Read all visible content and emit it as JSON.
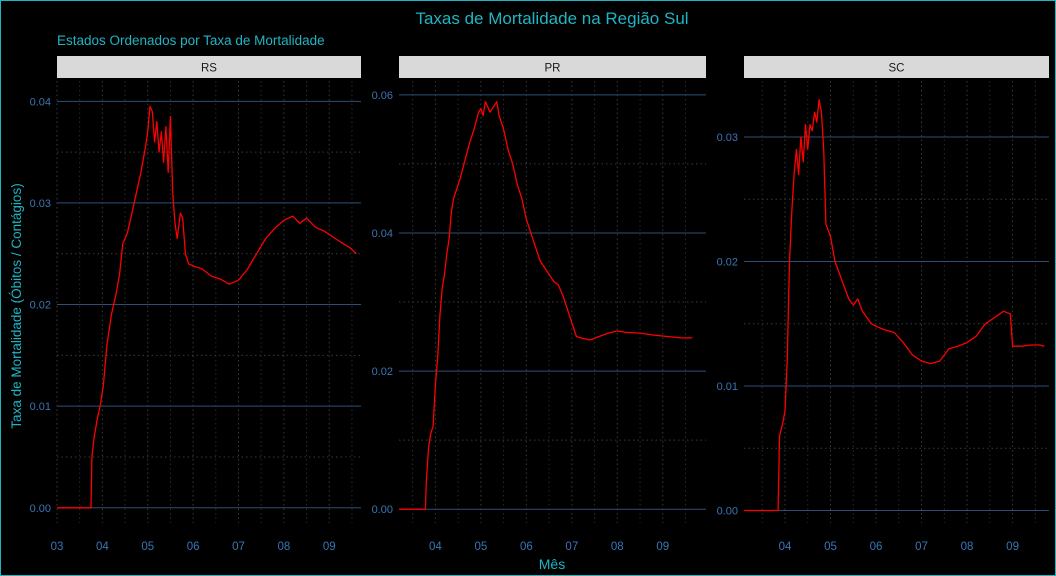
{
  "title": "Taxas de Mortalidade na Região Sul",
  "subtitle": "Estados Ordenados por Taxa de Mortalidade",
  "colors": {
    "title": "#1fb5c4",
    "axis_text": "#3b74b5",
    "line": "#ff0000",
    "grid_major": "#2e4f73",
    "grid_minor": "#2a2a2a",
    "strip_bg": "#d9d9d9",
    "strip_text": "#1a1a1a"
  },
  "chart_data": {
    "type": "line",
    "xlabel": "Mês",
    "ylabel": "Taxa de Mortalidade (Óbitos / Contágios)",
    "grid": true,
    "panels": [
      {
        "name": "RS",
        "x_ticks": [
          "03",
          "04",
          "05",
          "06",
          "07",
          "08",
          "09"
        ],
        "x_range": [
          3,
          9.7
        ],
        "y_ticks": [
          "0.00",
          "0.01",
          "0.02",
          "0.03",
          "0.04"
        ],
        "y_range": [
          -0.0015,
          0.042
        ],
        "points": [
          [
            3.0,
            0.0
          ],
          [
            3.75,
            0.0
          ],
          [
            3.77,
            0.005
          ],
          [
            3.82,
            0.007
          ],
          [
            3.9,
            0.009
          ],
          [
            3.95,
            0.01
          ],
          [
            4.02,
            0.012
          ],
          [
            4.1,
            0.016
          ],
          [
            4.2,
            0.019
          ],
          [
            4.3,
            0.021
          ],
          [
            4.38,
            0.023
          ],
          [
            4.45,
            0.026
          ],
          [
            4.55,
            0.027
          ],
          [
            4.65,
            0.029
          ],
          [
            4.75,
            0.031
          ],
          [
            4.85,
            0.033
          ],
          [
            4.95,
            0.0355
          ],
          [
            5.0,
            0.037
          ],
          [
            5.05,
            0.0395
          ],
          [
            5.1,
            0.039
          ],
          [
            5.15,
            0.036
          ],
          [
            5.2,
            0.038
          ],
          [
            5.25,
            0.035
          ],
          [
            5.3,
            0.037
          ],
          [
            5.35,
            0.034
          ],
          [
            5.4,
            0.0375
          ],
          [
            5.45,
            0.033
          ],
          [
            5.5,
            0.0385
          ],
          [
            5.55,
            0.031
          ],
          [
            5.6,
            0.028
          ],
          [
            5.65,
            0.0265
          ],
          [
            5.72,
            0.029
          ],
          [
            5.77,
            0.0285
          ],
          [
            5.83,
            0.025
          ],
          [
            5.9,
            0.024
          ],
          [
            6.0,
            0.0238
          ],
          [
            6.2,
            0.0235
          ],
          [
            6.4,
            0.0228
          ],
          [
            6.6,
            0.0225
          ],
          [
            6.8,
            0.022
          ],
          [
            7.0,
            0.0224
          ],
          [
            7.2,
            0.0235
          ],
          [
            7.4,
            0.025
          ],
          [
            7.6,
            0.0265
          ],
          [
            7.8,
            0.0275
          ],
          [
            8.0,
            0.0283
          ],
          [
            8.2,
            0.0287
          ],
          [
            8.35,
            0.028
          ],
          [
            8.5,
            0.0285
          ],
          [
            8.7,
            0.0276
          ],
          [
            8.9,
            0.0272
          ],
          [
            9.1,
            0.0266
          ],
          [
            9.3,
            0.026
          ],
          [
            9.45,
            0.0256
          ],
          [
            9.6,
            0.025
          ]
        ]
      },
      {
        "name": "PR",
        "x_ticks": [
          "04",
          "05",
          "06",
          "07",
          "08",
          "09"
        ],
        "x_range": [
          3.2,
          9.95
        ],
        "y_ticks": [
          "0.00",
          "0.02",
          "0.04",
          "0.06"
        ],
        "y_range": [
          -0.002,
          0.062
        ],
        "points": [
          [
            3.2,
            0.0
          ],
          [
            3.78,
            0.0
          ],
          [
            3.8,
            0.004
          ],
          [
            3.85,
            0.009
          ],
          [
            3.9,
            0.011
          ],
          [
            3.95,
            0.012
          ],
          [
            4.0,
            0.018
          ],
          [
            4.05,
            0.022
          ],
          [
            4.1,
            0.028
          ],
          [
            4.15,
            0.032
          ],
          [
            4.2,
            0.034
          ],
          [
            4.25,
            0.037
          ],
          [
            4.3,
            0.039
          ],
          [
            4.35,
            0.043
          ],
          [
            4.4,
            0.045
          ],
          [
            4.45,
            0.046
          ],
          [
            4.55,
            0.048
          ],
          [
            4.65,
            0.0505
          ],
          [
            4.75,
            0.053
          ],
          [
            4.85,
            0.055
          ],
          [
            4.95,
            0.0575
          ],
          [
            5.0,
            0.058
          ],
          [
            5.05,
            0.057
          ],
          [
            5.1,
            0.059
          ],
          [
            5.2,
            0.0575
          ],
          [
            5.3,
            0.0585
          ],
          [
            5.35,
            0.059
          ],
          [
            5.4,
            0.057
          ],
          [
            5.5,
            0.055
          ],
          [
            5.6,
            0.052
          ],
          [
            5.7,
            0.05
          ],
          [
            5.8,
            0.047
          ],
          [
            5.9,
            0.045
          ],
          [
            6.0,
            0.042
          ],
          [
            6.1,
            0.04
          ],
          [
            6.2,
            0.038
          ],
          [
            6.3,
            0.036
          ],
          [
            6.4,
            0.035
          ],
          [
            6.5,
            0.034
          ],
          [
            6.6,
            0.033
          ],
          [
            6.7,
            0.0325
          ],
          [
            6.8,
            0.031
          ],
          [
            6.9,
            0.029
          ],
          [
            7.0,
            0.027
          ],
          [
            7.1,
            0.025
          ],
          [
            7.2,
            0.0248
          ],
          [
            7.4,
            0.0245
          ],
          [
            7.6,
            0.025
          ],
          [
            7.8,
            0.0255
          ],
          [
            8.0,
            0.0258
          ],
          [
            8.2,
            0.0256
          ],
          [
            8.5,
            0.0255
          ],
          [
            8.8,
            0.0252
          ],
          [
            9.1,
            0.025
          ],
          [
            9.4,
            0.0248
          ],
          [
            9.65,
            0.0248
          ]
        ]
      },
      {
        "name": "SC",
        "x_ticks": [
          "04",
          "05",
          "06",
          "07",
          "08",
          "09"
        ],
        "x_range": [
          3.1,
          9.8
        ],
        "y_ticks": [
          "0.00",
          "0.01",
          "0.02",
          "0.03"
        ],
        "y_range": [
          -0.001,
          0.0345
        ],
        "points": [
          [
            3.1,
            0.0
          ],
          [
            3.85,
            0.0
          ],
          [
            3.88,
            0.006
          ],
          [
            3.95,
            0.007
          ],
          [
            4.0,
            0.008
          ],
          [
            4.05,
            0.012
          ],
          [
            4.1,
            0.02
          ],
          [
            4.15,
            0.024
          ],
          [
            4.2,
            0.027
          ],
          [
            4.25,
            0.029
          ],
          [
            4.3,
            0.027
          ],
          [
            4.35,
            0.03
          ],
          [
            4.4,
            0.028
          ],
          [
            4.45,
            0.031
          ],
          [
            4.5,
            0.029
          ],
          [
            4.55,
            0.031
          ],
          [
            4.6,
            0.0305
          ],
          [
            4.65,
            0.032
          ],
          [
            4.7,
            0.0312
          ],
          [
            4.75,
            0.033
          ],
          [
            4.8,
            0.032
          ],
          [
            4.85,
            0.029
          ],
          [
            4.9,
            0.023
          ],
          [
            5.0,
            0.022
          ],
          [
            5.1,
            0.02
          ],
          [
            5.2,
            0.019
          ],
          [
            5.3,
            0.018
          ],
          [
            5.4,
            0.017
          ],
          [
            5.5,
            0.0165
          ],
          [
            5.6,
            0.017
          ],
          [
            5.7,
            0.016
          ],
          [
            5.8,
            0.0155
          ],
          [
            5.9,
            0.015
          ],
          [
            6.0,
            0.0148
          ],
          [
            6.2,
            0.0145
          ],
          [
            6.4,
            0.0143
          ],
          [
            6.6,
            0.0135
          ],
          [
            6.8,
            0.0125
          ],
          [
            7.0,
            0.012
          ],
          [
            7.2,
            0.0118
          ],
          [
            7.4,
            0.012
          ],
          [
            7.6,
            0.013
          ],
          [
            7.8,
            0.0132
          ],
          [
            8.0,
            0.0135
          ],
          [
            8.2,
            0.014
          ],
          [
            8.4,
            0.015
          ],
          [
            8.6,
            0.0155
          ],
          [
            8.8,
            0.016
          ],
          [
            8.95,
            0.0158
          ],
          [
            9.0,
            0.0132
          ],
          [
            9.2,
            0.0132
          ],
          [
            9.4,
            0.0133
          ],
          [
            9.6,
            0.0133
          ],
          [
            9.7,
            0.0132
          ]
        ]
      }
    ]
  }
}
